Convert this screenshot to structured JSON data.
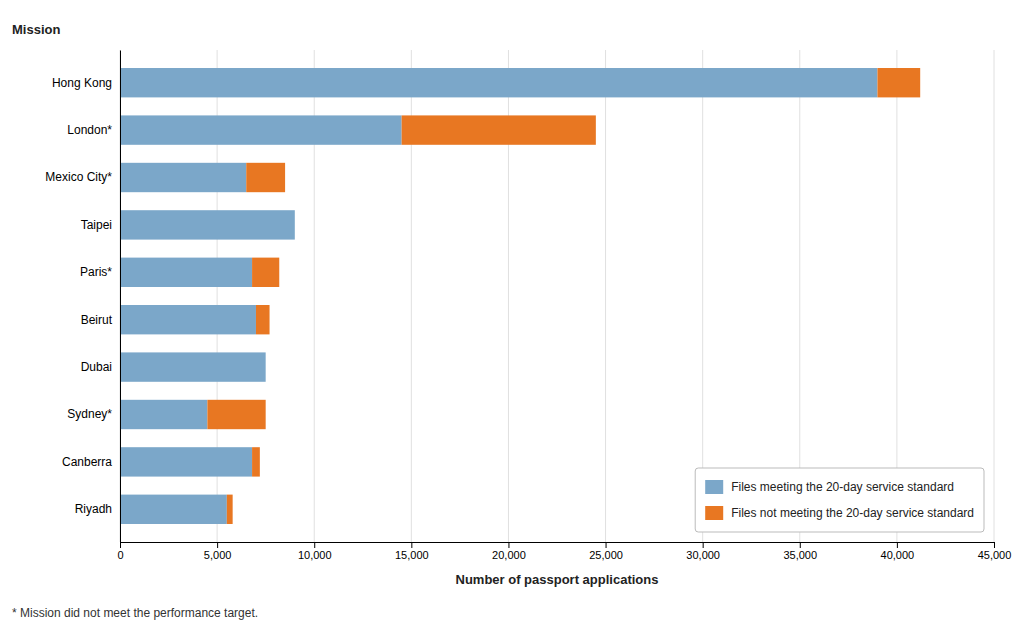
{
  "chart_data": {
    "type": "bar",
    "orientation": "horizontal",
    "stacked": true,
    "categories": [
      "Hong Kong",
      "London*",
      "Mexico City*",
      "Taipei",
      "Paris*",
      "Beirut",
      "Dubai",
      "Sydney*",
      "Canberra",
      "Riyadh"
    ],
    "series": [
      {
        "name": "Files meeting the 20-day service standard",
        "color": "#7BA7C9",
        "values": [
          39000,
          14500,
          6500,
          9000,
          6800,
          7000,
          7500,
          4500,
          6800,
          5500
        ]
      },
      {
        "name": "Files not meeting the 20-day service standard",
        "color": "#E87722",
        "values": [
          2200,
          10000,
          2000,
          0,
          1400,
          700,
          0,
          3000,
          400,
          300
        ]
      }
    ],
    "xlabel": "Number of passport applications",
    "ylabel": "Mission",
    "footnote": "* Mission did not meet the performance target.",
    "xlim": [
      0,
      45000
    ],
    "xticks": [
      0,
      {
        "value": 5000,
        "label": "5,000"
      },
      {
        "value": 10000,
        "label": "10,000"
      },
      {
        "value": 15000,
        "label": "15,000"
      },
      {
        "value": 20000,
        "label": "20,000"
      },
      {
        "value": 25000,
        "label": "25,000"
      },
      {
        "value": 30000,
        "label": "30,000"
      },
      {
        "value": 35000,
        "label": "35,000"
      },
      {
        "value": 40000,
        "label": "40,000"
      },
      {
        "value": 45000,
        "label": "45,000"
      }
    ],
    "grid": true,
    "legend": "lower right"
  }
}
